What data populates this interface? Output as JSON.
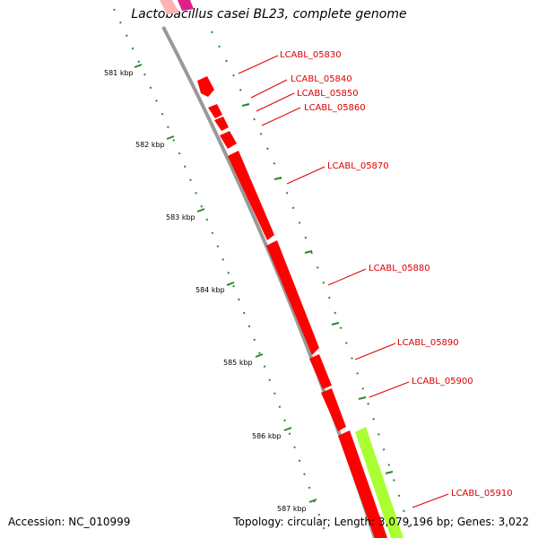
{
  "title": "Lactobacillus casei BL23, complete genome",
  "footer": {
    "accession": "Accession: NC_010999",
    "summary": "Topology: circular; Length: 3,079,196 bp; Genes: 3,022"
  },
  "colors": {
    "gene_forward": "#ff0000",
    "gene_highlight": "#aaff33",
    "backbone": "#999999",
    "ticks": "#2a8a2a",
    "label": "#dd0000"
  },
  "ticks": [
    "581 kbp",
    "582 kbp",
    "583 kbp",
    "584 kbp",
    "585 kbp",
    "586 kbp",
    "587 kbp"
  ],
  "genes": [
    {
      "label": "LCABL_05830"
    },
    {
      "label": "LCABL_05840"
    },
    {
      "label": "LCABL_05850"
    },
    {
      "label": "LCABL_05860"
    },
    {
      "label": "LCABL_05870"
    },
    {
      "label": "LCABL_05880"
    },
    {
      "label": "LCABL_05890"
    },
    {
      "label": "LCABL_05900"
    },
    {
      "label": "LCABL_05910"
    }
  ]
}
